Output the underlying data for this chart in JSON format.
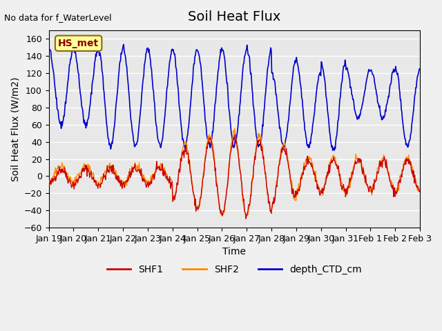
{
  "title": "Soil Heat Flux",
  "top_left_text": "No data for f_WaterLevel",
  "ylabel": "Soil Heat Flux (W/m2)",
  "xlabel": "Time",
  "box_label": "HS_met",
  "ylim": [
    -60,
    170
  ],
  "yticks": [
    -60,
    -40,
    -20,
    0,
    20,
    40,
    60,
    80,
    100,
    120,
    140,
    160
  ],
  "x_tick_labels": [
    "Jan 19",
    "Jan 20",
    "Jan 21",
    "Jan 22",
    "Jan 23",
    "Jan 24",
    "Jan 25",
    "Jan 26",
    "Jan 27",
    "Jan 28",
    "Jan 29",
    "Jan 30",
    "Jan 31",
    "Feb 1",
    "Feb 2",
    "Feb 3"
  ],
  "legend_entries": [
    "SHF1",
    "SHF2",
    "depth_CTD_cm"
  ],
  "legend_colors": [
    "#cc0000",
    "#ff8800",
    "#0000cc"
  ],
  "shf1_color": "#cc0000",
  "shf2_color": "#ff8800",
  "ctd_color": "#0000cc",
  "bg_color": "#e8e8e8",
  "grid_color": "#ffffff",
  "title_fontsize": 14,
  "label_fontsize": 10,
  "tick_fontsize": 9
}
